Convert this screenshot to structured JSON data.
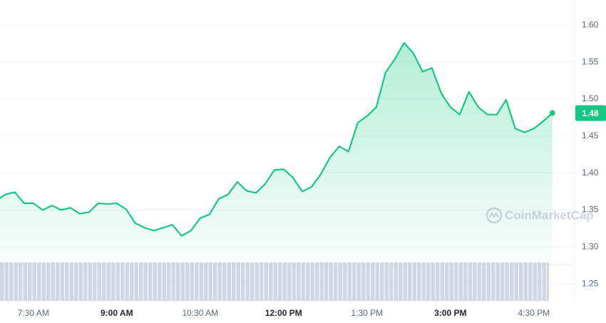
{
  "chart_data": {
    "type": "area",
    "x": [
      "6:50 AM",
      "7:00 AM",
      "7:10 AM",
      "7:20 AM",
      "7:30 AM",
      "7:40 AM",
      "7:50 AM",
      "8:00 AM",
      "8:10 AM",
      "8:20 AM",
      "8:30 AM",
      "8:40 AM",
      "8:50 AM",
      "9:00 AM",
      "9:10 AM",
      "9:20 AM",
      "9:30 AM",
      "9:40 AM",
      "9:50 AM",
      "10:00 AM",
      "10:10 AM",
      "10:20 AM",
      "10:30 AM",
      "10:40 AM",
      "10:50 AM",
      "11:00 AM",
      "11:10 AM",
      "11:20 AM",
      "11:30 AM",
      "11:40 AM",
      "11:50 AM",
      "12:00 PM",
      "12:10 PM",
      "12:20 PM",
      "12:30 PM",
      "12:40 PM",
      "12:50 PM",
      "1:00 PM",
      "1:10 PM",
      "1:20 PM",
      "1:30 PM",
      "1:40 PM",
      "1:50 PM",
      "2:00 PM",
      "2:10 PM",
      "2:20 PM",
      "2:30 PM",
      "2:40 PM",
      "2:50 PM",
      "3:00 PM",
      "3:10 PM",
      "3:20 PM",
      "3:30 PM",
      "3:40 PM",
      "3:50 PM",
      "4:00 PM",
      "4:10 PM",
      "4:20 PM",
      "4:30 PM",
      "4:40 PM",
      "4:50 PM"
    ],
    "values": [
      1.363,
      1.371,
      1.374,
      1.359,
      1.359,
      1.35,
      1.356,
      1.35,
      1.353,
      1.345,
      1.347,
      1.359,
      1.358,
      1.359,
      1.351,
      1.332,
      1.326,
      1.322,
      1.326,
      1.33,
      1.315,
      1.322,
      1.339,
      1.344,
      1.365,
      1.371,
      1.388,
      1.376,
      1.373,
      1.385,
      1.404,
      1.405,
      1.394,
      1.375,
      1.381,
      1.398,
      1.421,
      1.436,
      1.429,
      1.468,
      1.477,
      1.489,
      1.536,
      1.554,
      1.576,
      1.562,
      1.537,
      1.542,
      1.508,
      1.489,
      1.479,
      1.51,
      1.489,
      1.479,
      1.479,
      1.499,
      1.46,
      1.455,
      1.46,
      1.47,
      1.481
    ],
    "value_labels": [
      null,
      null,
      null,
      null,
      null,
      null,
      null,
      null,
      null,
      null,
      null,
      null,
      null,
      null,
      null,
      null,
      null,
      null,
      null,
      null,
      null,
      null,
      null,
      null,
      null,
      null,
      null,
      null,
      null,
      null,
      null,
      null,
      null,
      null,
      null,
      null,
      null,
      null,
      null,
      null,
      null,
      null,
      null,
      null,
      null,
      null,
      null,
      null,
      null,
      null,
      null,
      null,
      null,
      null,
      null,
      null,
      null,
      null,
      null,
      null,
      "1.48"
    ],
    "color": "#16c784",
    "xlim": [
      "6:54 AM",
      "5:14 PM"
    ],
    "xticks": [
      "7:30 AM",
      "9:00 AM",
      "10:30 AM",
      "12:00 PM",
      "1:30 PM",
      "3:00 PM",
      "4:30 PM"
    ],
    "ylim": [
      1.227,
      1.634
    ],
    "yticks": [
      1.25,
      {
        "value": 1.3,
        "label": "1.30"
      },
      1.35,
      {
        "value": 1.4,
        "label": "1.40"
      },
      1.45,
      {
        "value": 1.5,
        "label": "1.50"
      },
      1.55,
      {
        "value": 1.6,
        "label": "1.60"
      }
    ],
    "grid": true,
    "watermark": "CoinMarketCap"
  }
}
